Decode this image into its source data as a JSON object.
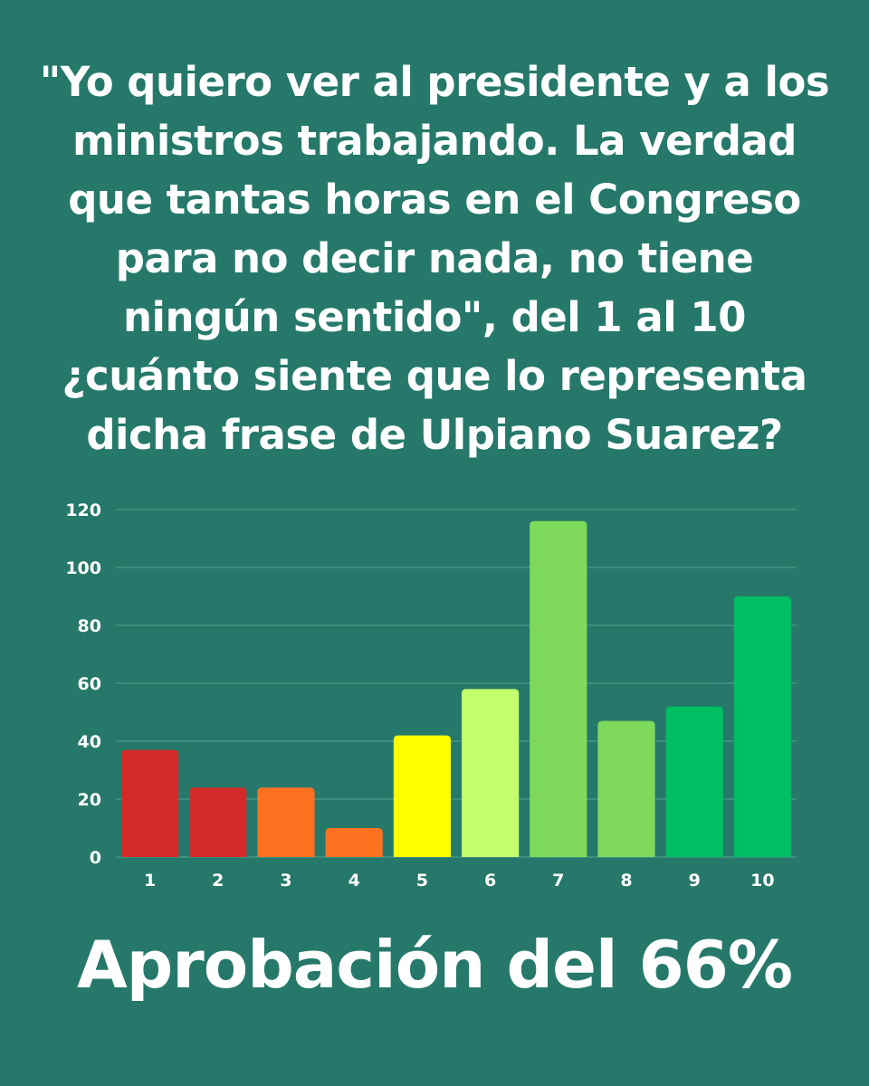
{
  "question": "\"Yo quiero ver al presidente y a los ministros trabajando. La verdad que tantas horas en el Congreso para no decir nada, no tiene ningún sentido\", del 1 al 10 ¿cuánto siente que lo representa dicha frase de Ulpiano Suarez?",
  "approval_text": "Aprobación del 66%",
  "colors": {
    "background": "#26796a",
    "grid": "#4a9a89"
  },
  "chart_data": {
    "type": "bar",
    "categories": [
      "1",
      "2",
      "3",
      "4",
      "5",
      "6",
      "7",
      "8",
      "9",
      "10"
    ],
    "values": [
      37,
      24,
      24,
      10,
      42,
      58,
      116,
      47,
      52,
      90
    ],
    "bar_colors": [
      "#d42a2a",
      "#d42a2a",
      "#fd7120",
      "#fd7120",
      "#ffff00",
      "#c3ff6b",
      "#7fd95a",
      "#7fd95a",
      "#00be62",
      "#00be62"
    ],
    "ylim": [
      0,
      120
    ],
    "yticks": [
      0,
      20,
      40,
      60,
      80,
      100,
      120
    ],
    "grid": true,
    "title": "",
    "xlabel": "",
    "ylabel": ""
  }
}
